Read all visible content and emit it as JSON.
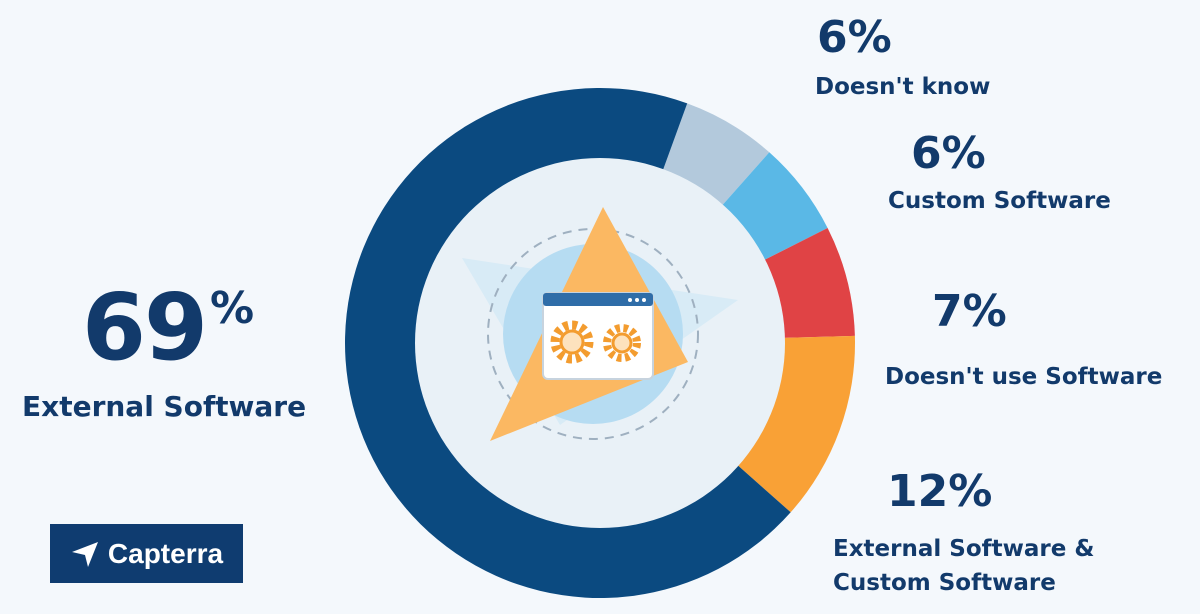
{
  "colors": {
    "text": "#123a6b",
    "background": "#f4f8fc",
    "logo_bg": "#0f3c70",
    "center_light": "#b6dcf2",
    "center_orange": "#fbb862",
    "gear": "#f39c2f"
  },
  "center_graphic": {
    "icon": "browser-window-with-gears-icon"
  },
  "chart_data": {
    "type": "pie",
    "style": "donut",
    "slices": [
      {
        "label": "External Software",
        "value": 69,
        "value_label": "69%",
        "color": "#0b4a80"
      },
      {
        "label": "Doesn't know",
        "value": 6,
        "value_label": "6%",
        "color": "#b3c9dc"
      },
      {
        "label": "Custom Software",
        "value": 6,
        "value_label": "6%",
        "color": "#5ab8e6"
      },
      {
        "label": "Doesn't use Software",
        "value": 7,
        "value_label": "7%",
        "color": "#e04345"
      },
      {
        "label": "External Software & Custom Software",
        "value": 12,
        "value_label": "12%",
        "color": "#f9a136"
      }
    ],
    "side_labels": {
      "external_number": "69",
      "percent_sign": "%",
      "doesnt_know_pct": "6%",
      "custom_pct": "6%",
      "doesnt_use_pct": "7%",
      "both_pct": "12%",
      "both_label_line1": "External Software &",
      "both_label_line2": "Custom Software"
    }
  },
  "logo": {
    "text": "Capterra",
    "icon": "capterra-arrow-icon"
  }
}
